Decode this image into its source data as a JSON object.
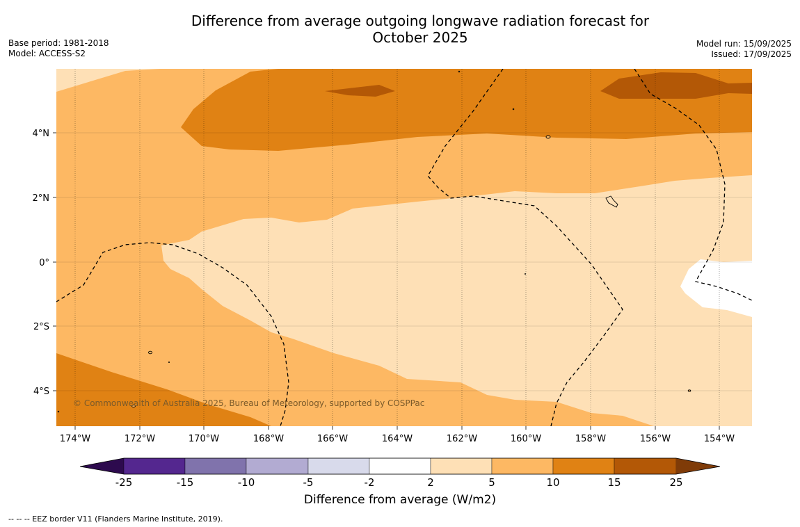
{
  "title_line1": "Difference from average outgoing longwave radiation forecast for",
  "title_line2": "October 2025",
  "base_period": "Base period: 1981-2018",
  "model": "Model: ACCESS-S2",
  "model_run": "Model run: 15/09/2025",
  "issued": "Issued: 17/09/2025",
  "copyright": "© Commonwealth of Australia 2025, Bureau of Meteorology, supported by COSPPac",
  "x_ticks": [
    "174°W",
    "172°W",
    "170°W",
    "168°W",
    "166°W",
    "164°W",
    "162°W",
    "160°W",
    "158°W",
    "156°W",
    "154°W"
  ],
  "y_ticks": [
    "4°N",
    "2°N",
    "0°",
    "2°S",
    "4°S"
  ],
  "colorbar": {
    "label": "Difference from average (W/m2)",
    "ticks": [
      "-25",
      "-15",
      "-10",
      "-5",
      "-2",
      "2",
      "5",
      "10",
      "15",
      "25"
    ],
    "colors": [
      "#2d0a4e",
      "#54278f",
      "#8073ac",
      "#b2abd2",
      "#d8daeb",
      "#ffffff",
      "#fee0b6",
      "#fdb863",
      "#e08214",
      "#b35806",
      "#7f3b08"
    ]
  },
  "footnote": "--  --  -- EEZ border V11 (Flanders Marine Institute, 2019)."
}
